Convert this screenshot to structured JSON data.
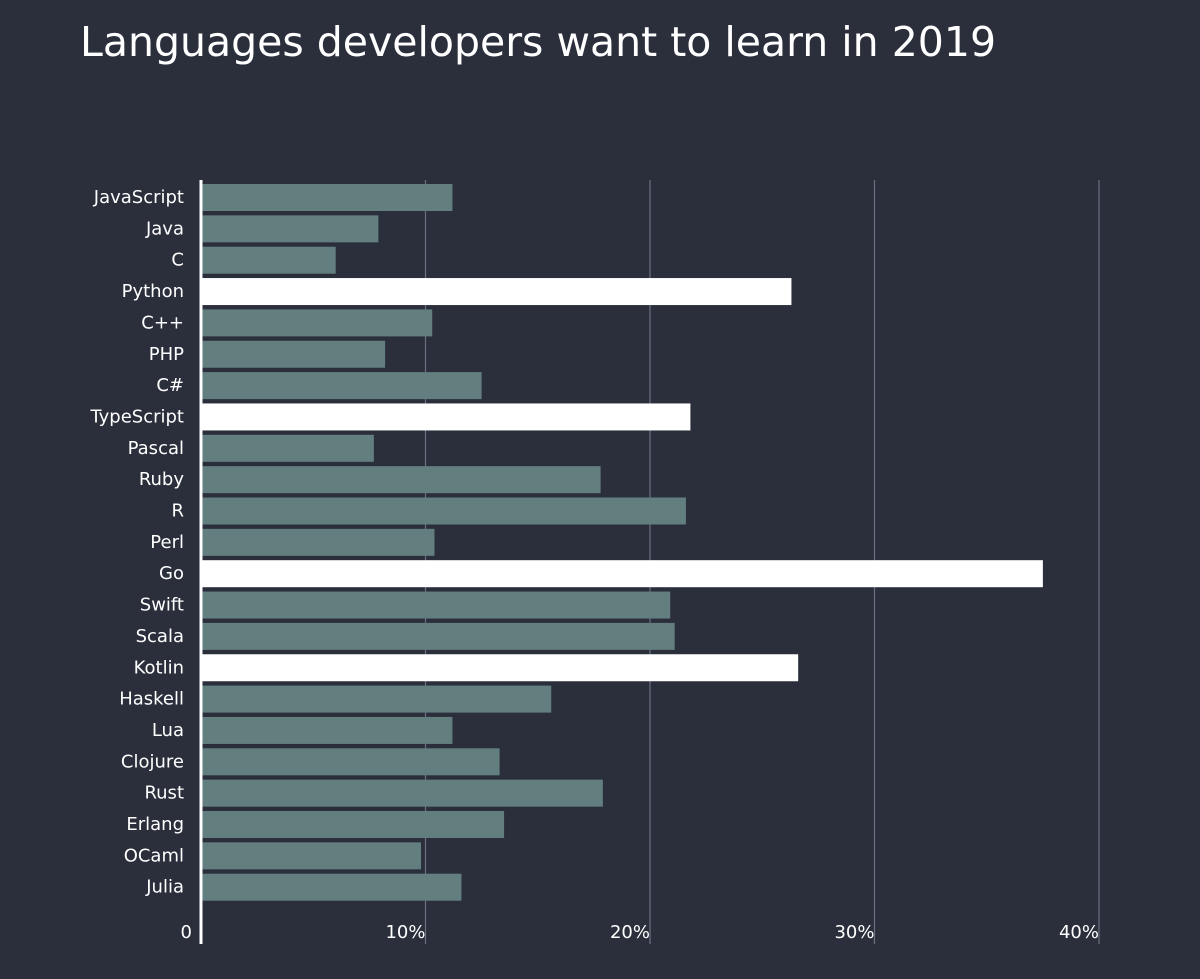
{
  "chart_data": {
    "type": "bar",
    "orientation": "horizontal",
    "title": "Languages developers want to learn in 2019",
    "xlabel": "",
    "ylabel": "",
    "xlim": [
      0,
      40
    ],
    "grid": true,
    "x_ticks": [
      {
        "value": 0,
        "label": "0"
      },
      {
        "value": 10,
        "label": "10%"
      },
      {
        "value": 20,
        "label": "20%"
      },
      {
        "value": 30,
        "label": "30%"
      },
      {
        "value": 40,
        "label": "40%"
      }
    ],
    "categories": [
      "JavaScript",
      "Java",
      "C",
      "Python",
      "C++",
      "PHP",
      "C#",
      "TypeScript",
      "Pascal",
      "Ruby",
      "R",
      "Perl",
      "Go",
      "Swift",
      "Scala",
      "Kotlin",
      "Haskell",
      "Lua",
      "Clojure",
      "Rust",
      "Erlang",
      "OCaml",
      "Julia"
    ],
    "values": [
      11.2,
      7.9,
      6.0,
      26.3,
      10.3,
      8.2,
      12.5,
      21.8,
      7.7,
      17.8,
      21.6,
      10.4,
      37.5,
      20.9,
      21.1,
      26.6,
      15.6,
      11.2,
      13.3,
      17.9,
      13.5,
      9.8,
      11.6
    ],
    "highlighted": [
      "Python",
      "TypeScript",
      "Go",
      "Kotlin"
    ],
    "colors": {
      "bar": "#637e7f",
      "highlight": "#ffffff",
      "grid": "#6a7080",
      "axis": "#ffffff",
      "background": "#2b2f3c"
    }
  }
}
